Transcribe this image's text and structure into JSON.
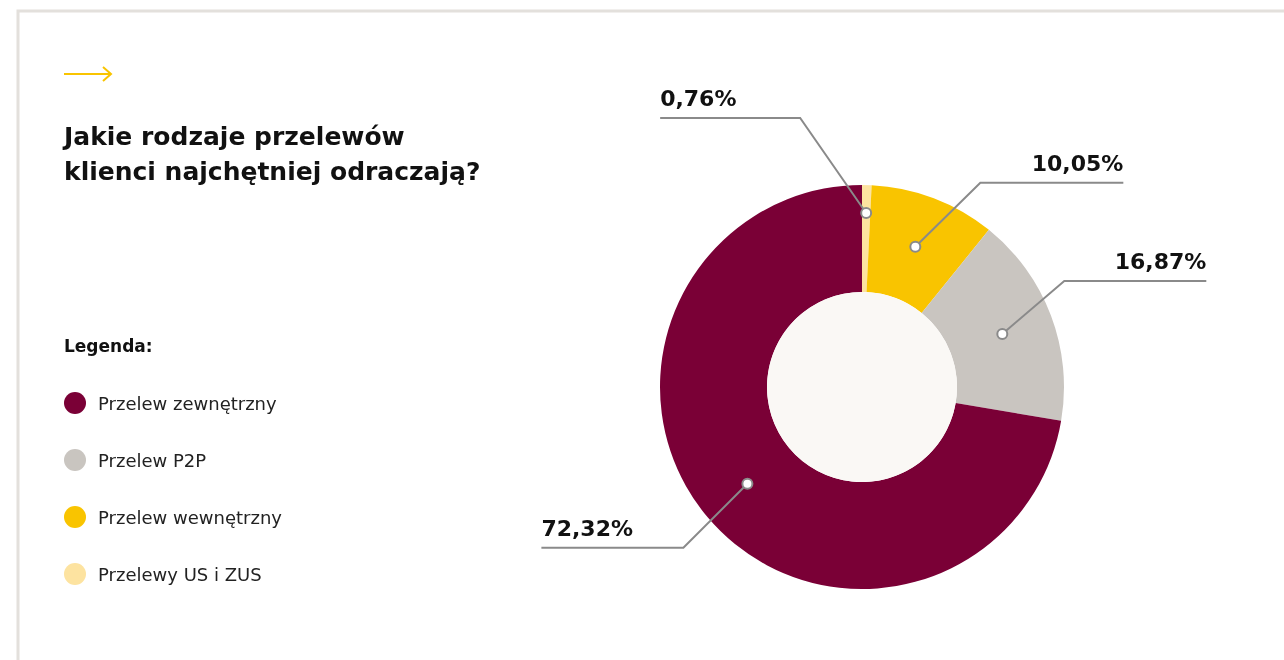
{
  "chart_data": {
    "type": "donut",
    "title": "Jakie rodzaje przelewów\nklienci najchętniej odraczają?",
    "legend_title": "Legenda:",
    "legend": "left",
    "categories": [
      "Przelew zewnętrzny",
      "Przelew P2P",
      "Przelew wewnętrzny",
      "Przelewy US i ZUS"
    ],
    "values": [
      72.32,
      16.87,
      10.05,
      0.76
    ],
    "colors": [
      "#7a0036",
      "#c9c5c0",
      "#f9c400",
      "#fde3a0"
    ],
    "value_labels": [
      "72,32%",
      "16,87%",
      "10,05%",
      "0,76%"
    ]
  }
}
